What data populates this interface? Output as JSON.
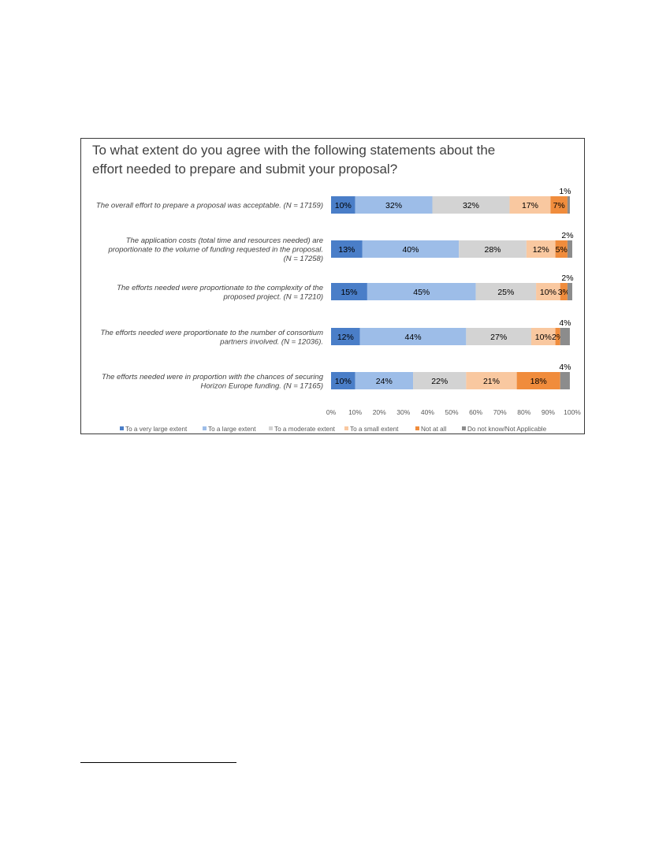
{
  "chart_data": {
    "type": "bar",
    "stacked": true,
    "orientation": "horizontal",
    "title": "To what extent do you agree with the following statements about the effort needed to prepare and submit your proposal?",
    "title_lines": [
      "To what extent do you agree with the following statements about the",
      "effort needed to prepare and submit your proposal?"
    ],
    "categories": [
      [
        "The overall effort to prepare a proposal was acceptable. (N = 17159)"
      ],
      [
        "The application costs (total time and resources needed) are",
        "proportionate to the volume of funding requested in the proposal.",
        "(N = 17258)"
      ],
      [
        "The efforts needed were proportionate to the complexity of the",
        "proposed project. (N = 17210)"
      ],
      [
        "The efforts needed were proportionate to the number of consortium",
        "partners involved. (N = 12036)."
      ],
      [
        "The efforts needed were in proportion with the chances of securing",
        "Horizon Europe funding. (N = 17165)"
      ]
    ],
    "series": [
      {
        "name": "To a very large extent",
        "color": "#4a7ec8",
        "values": [
          10,
          13,
          15,
          12,
          10
        ]
      },
      {
        "name": "To a large extent",
        "color": "#9dbde8",
        "values": [
          32,
          40,
          45,
          44,
          24
        ]
      },
      {
        "name": "To a moderate extent",
        "color": "#d3d3d3",
        "values": [
          32,
          28,
          25,
          27,
          22
        ]
      },
      {
        "name": "To a small extent",
        "color": "#f9c8a0",
        "values": [
          17,
          12,
          10,
          10,
          21
        ]
      },
      {
        "name": "Not at all",
        "color": "#f08c3c",
        "values": [
          7,
          5,
          3,
          2,
          18
        ]
      },
      {
        "name": "Do not know/Not Applicable",
        "color": "#8c8c8c",
        "values": [
          1,
          2,
          2,
          4,
          4
        ]
      }
    ],
    "x_ticks": [
      "0%",
      "10%",
      "20%",
      "30%",
      "40%",
      "50%",
      "60%",
      "70%",
      "80%",
      "90%",
      "100%"
    ],
    "xlim": [
      0,
      100
    ],
    "grid": false,
    "legend_position": "bottom"
  }
}
